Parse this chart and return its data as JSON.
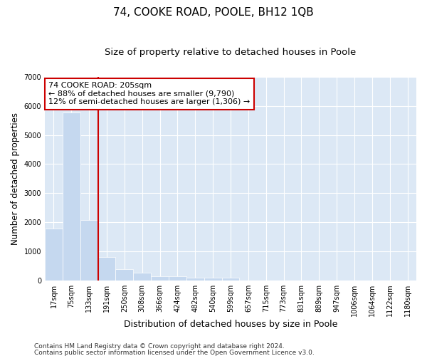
{
  "title": "74, COOKE ROAD, POOLE, BH12 1QB",
  "subtitle": "Size of property relative to detached houses in Poole",
  "xlabel": "Distribution of detached houses by size in Poole",
  "ylabel": "Number of detached properties",
  "categories": [
    "17sqm",
    "75sqm",
    "133sqm",
    "191sqm",
    "250sqm",
    "308sqm",
    "366sqm",
    "424sqm",
    "482sqm",
    "540sqm",
    "599sqm",
    "657sqm",
    "715sqm",
    "773sqm",
    "831sqm",
    "889sqm",
    "947sqm",
    "1006sqm",
    "1064sqm",
    "1122sqm",
    "1180sqm"
  ],
  "values": [
    1780,
    5780,
    2080,
    800,
    370,
    265,
    145,
    125,
    100,
    95,
    80,
    0,
    0,
    0,
    0,
    0,
    0,
    0,
    0,
    0,
    0
  ],
  "bar_color": "#c5d8ef",
  "vline_color": "#cc0000",
  "vline_pos": 2.5,
  "annotation_text_line1": "74 COOKE ROAD: 205sqm",
  "annotation_text_line2": "← 88% of detached houses are smaller (9,790)",
  "annotation_text_line3": "12% of semi-detached houses are larger (1,306) →",
  "ylim": [
    0,
    7000
  ],
  "yticks": [
    0,
    1000,
    2000,
    3000,
    4000,
    5000,
    6000,
    7000
  ],
  "footer_line1": "Contains HM Land Registry data © Crown copyright and database right 2024.",
  "footer_line2": "Contains public sector information licensed under the Open Government Licence v3.0.",
  "plot_bg_color": "#dce8f5",
  "title_fontsize": 11,
  "subtitle_fontsize": 9.5,
  "xlabel_fontsize": 9,
  "ylabel_fontsize": 8.5,
  "tick_fontsize": 7,
  "annotation_fontsize": 8,
  "footer_fontsize": 6.5
}
